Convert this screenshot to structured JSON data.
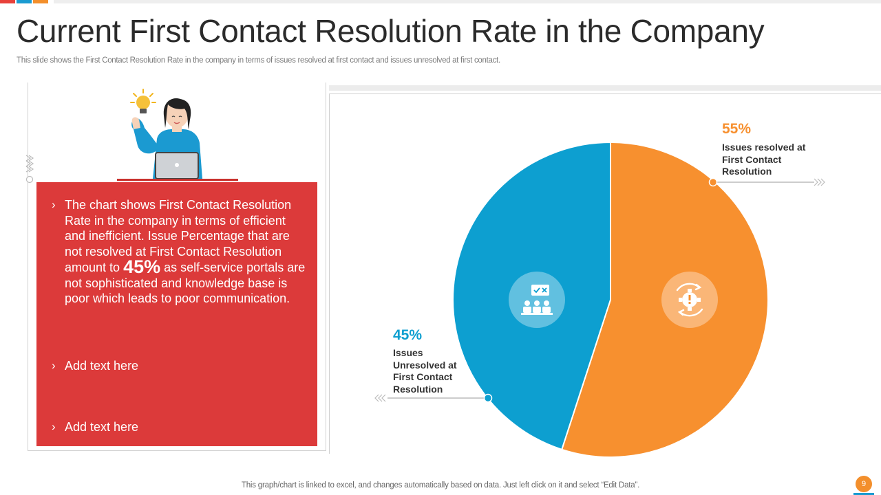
{
  "slide": {
    "title": "Current First Contact Resolution Rate in the Company",
    "subtitle": "This slide shows the First Contact Resolution Rate in the company in terms of issues resolved at first contact and issues unresolved at first contact.",
    "footer_note": "This graph/chart is linked to excel,  and changes automatically based on data. Just left click on it and select “Edit Data”.",
    "page_number": "9"
  },
  "bullets": {
    "chevron": "›",
    "first_part1": "The chart shows First Contact Resolution Rate in the company in terms of efficient and inefficient. Issue Percentage that are not resolved at First Contact Resolution amount to",
    "first_highlight": "45%",
    "first_part2": "as self-service portals are not sophisticated and knowledge base is poor which leads to poor communication.",
    "second": "Add text here",
    "third": "Add text here"
  },
  "labels": {
    "resolved_pct": "55%",
    "resolved_desc": "Issues resolved at First Contact Resolution",
    "unresolved_pct": "45%",
    "unresolved_desc": "Issues Unresolved at First Contact Resolution"
  },
  "colors": {
    "resolved": "#f7902f",
    "unresolved": "#0d9fd0",
    "panel": "#dc3a3a",
    "topbar": [
      "#e8413a",
      "#1a9bd1",
      "#f38f2c",
      "#eeeeee"
    ]
  },
  "icons": {
    "resolved": "gear-cycle-icon",
    "unresolved": "team-meeting-icon",
    "person": "woman-idea-laptop-illustration"
  },
  "chart_data": {
    "type": "pie",
    "title": "Current First Contact Resolution Rate in the Company",
    "categories": [
      "Issues resolved at First Contact Resolution",
      "Issues Unresolved at First Contact Resolution"
    ],
    "values": [
      55,
      45
    ],
    "unit": "%"
  }
}
